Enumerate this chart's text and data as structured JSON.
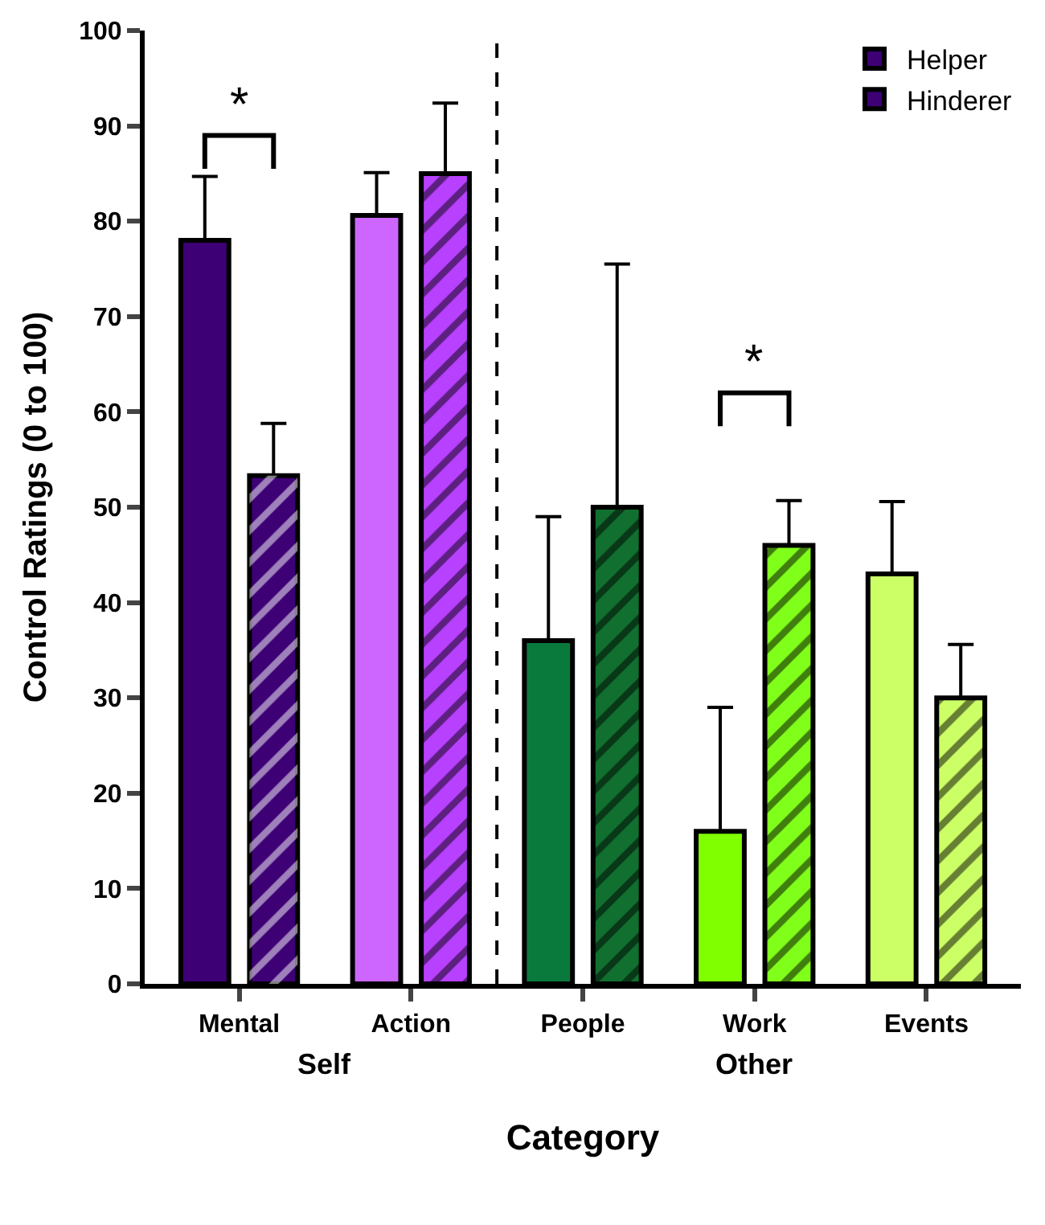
{
  "chart_data": {
    "type": "bar",
    "xlabel": "Category",
    "ylabel": "Control Ratings (0 to 100)",
    "categories": [
      "Mental",
      "Action",
      "People",
      "Work",
      "Events"
    ],
    "series": [
      {
        "name": "Helper",
        "colors": [
          "#3d0075",
          "#cc66ff",
          "#0a7a3c",
          "#80ff00",
          "#ccff66"
        ],
        "values": [
          78,
          80.6,
          36,
          16,
          43
        ],
        "errors": [
          [
            78,
            84.7
          ],
          [
            80.6,
            85.1
          ],
          [
            36,
            49
          ],
          [
            16,
            29
          ],
          [
            43,
            50.6
          ]
        ]
      },
      {
        "name": "Hinderer",
        "colors": [
          "#3d0075",
          "#b840ff",
          "#11702f",
          "#80ff1a",
          "#ccff66"
        ],
        "values": [
          53.3,
          85,
          50,
          46,
          30
        ],
        "errors": [
          [
            53.3,
            58.8
          ],
          [
            85,
            92.4
          ],
          [
            50,
            75.5
          ],
          [
            46,
            50.7
          ],
          [
            30,
            35.6
          ]
        ]
      }
    ],
    "ylim": [
      0,
      100
    ],
    "yticks": [
      0,
      10,
      20,
      30,
      40,
      50,
      60,
      70,
      80,
      90,
      100
    ],
    "annotations": [
      "*",
      "*",
      "Self",
      "Other"
    ],
    "legend": "top right"
  }
}
